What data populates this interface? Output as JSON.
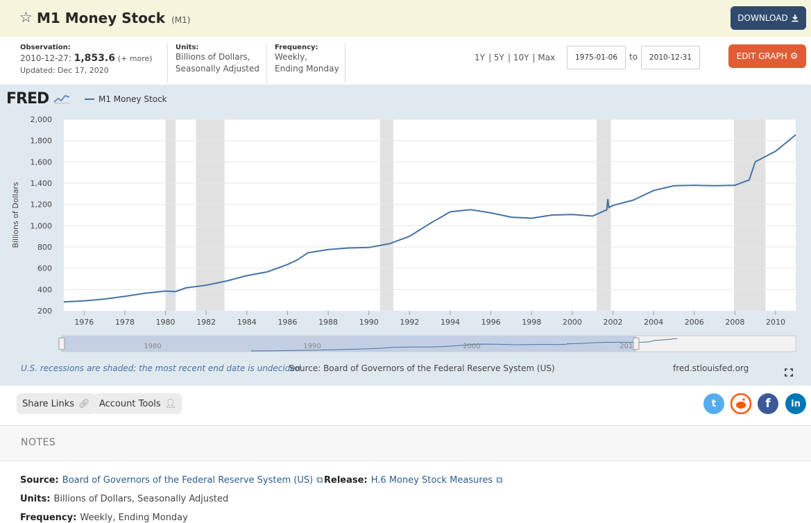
{
  "header": {
    "title": "M1 Money Stock",
    "series_id": "(M1)",
    "download_label": "DOWNLOAD",
    "edit_graph_label": "EDIT GRAPH"
  },
  "meta": {
    "observation_label": "Observation:",
    "observation_date": "2010-12-27:",
    "observation_value": "1,853.6",
    "observation_more": "(+ more)",
    "updated": "Updated: Dec 17, 2020",
    "units_label": "Units:",
    "units_line1": "Billions of Dollars,",
    "units_line2": "Seasonally Adjusted",
    "frequency_label": "Frequency:",
    "frequency_line1": "Weekly,",
    "frequency_line2": "Ending Monday"
  },
  "range_buttons": [
    "1Y",
    "5Y",
    "10Y",
    "Max"
  ],
  "date_from": "1975-01-06",
  "date_to_label": "to",
  "date_to": "2010-12-31",
  "graph": {
    "logo": "FRED",
    "footer_recessions": "U.S. recessions are shaded; the most recent end date is undecided.",
    "footer_source": "Source: Board of Governors of the Federal Reserve System (US)",
    "footer_url": "fred.stlouisfed.org"
  },
  "chart_data": {
    "type": "line",
    "series": [
      {
        "name": "M1 Money Stock",
        "x": [
          1975.0,
          1976.0,
          1977.0,
          1978.0,
          1979.0,
          1980.0,
          1980.5,
          1981.0,
          1982.0,
          1983.0,
          1984.0,
          1985.0,
          1986.0,
          1986.5,
          1987.0,
          1988.0,
          1989.0,
          1990.0,
          1991.0,
          1992.0,
          1993.0,
          1994.0,
          1995.0,
          1996.0,
          1997.0,
          1998.0,
          1999.0,
          2000.0,
          2001.0,
          2001.7,
          2001.75,
          2001.8,
          2002.0,
          2003.0,
          2004.0,
          2005.0,
          2006.0,
          2007.0,
          2008.0,
          2008.7,
          2009.0,
          2010.0,
          2010.99
        ],
        "values": [
          283,
          293,
          310,
          335,
          365,
          385,
          380,
          415,
          440,
          480,
          530,
          565,
          635,
          680,
          745,
          775,
          790,
          795,
          830,
          900,
          1020,
          1130,
          1150,
          1120,
          1080,
          1070,
          1100,
          1105,
          1090,
          1150,
          1250,
          1170,
          1190,
          1240,
          1330,
          1375,
          1380,
          1375,
          1380,
          1430,
          1600,
          1700,
          1853.6
        ],
        "color": "#4572a7"
      }
    ],
    "title": "",
    "xlabel": "",
    "ylabel": "Billions of Dollars",
    "ylim": [
      200,
      2000
    ],
    "xlim": [
      1975.0,
      2010.99
    ],
    "y_ticks": [
      "200",
      "400",
      "600",
      "800",
      "1,000",
      "1,200",
      "1,400",
      "1,600",
      "1,800",
      "2,000"
    ],
    "x_ticks": [
      "1976",
      "1978",
      "1980",
      "1982",
      "1984",
      "1986",
      "1988",
      "1990",
      "1992",
      "1994",
      "1996",
      "1998",
      "2000",
      "2002",
      "2004",
      "2006",
      "2008",
      "2010"
    ],
    "recessions": [
      [
        1980.0,
        1980.5
      ],
      [
        1981.5,
        1982.9
      ],
      [
        1990.55,
        1991.2
      ],
      [
        2001.2,
        2001.9
      ],
      [
        2007.95,
        2009.5
      ]
    ],
    "navigator_labels": [
      "1980",
      "1990",
      "2000",
      "2010"
    ],
    "grid": true,
    "legend": "top-left"
  },
  "share": {
    "share_links": "Share Links",
    "account_tools": "Account Tools"
  },
  "notes": {
    "title": "NOTES",
    "source_label": "Source:",
    "source_value": "Board of Governors of the Federal Reserve System (US)",
    "release_label": "Release:",
    "release_value": "H.6 Money Stock Measures",
    "units_label": "Units:",
    "units_value": "Billions of Dollars, Seasonally Adjusted",
    "frequency_label": "Frequency:",
    "frequency_value": "Weekly, Ending Monday"
  },
  "icons": [
    "star-icon",
    "download-icon",
    "gear-icon",
    "chart-logo-icon",
    "link-icon",
    "user-icon",
    "twitter-icon",
    "reddit-icon",
    "facebook-icon",
    "linkedin-icon",
    "external-link-icon",
    "fullscreen-icon"
  ],
  "colors": {
    "accent": "#2f4a6d",
    "edit": "#e05c35",
    "series": "#4572a7",
    "panel": "#e1e9f0"
  }
}
